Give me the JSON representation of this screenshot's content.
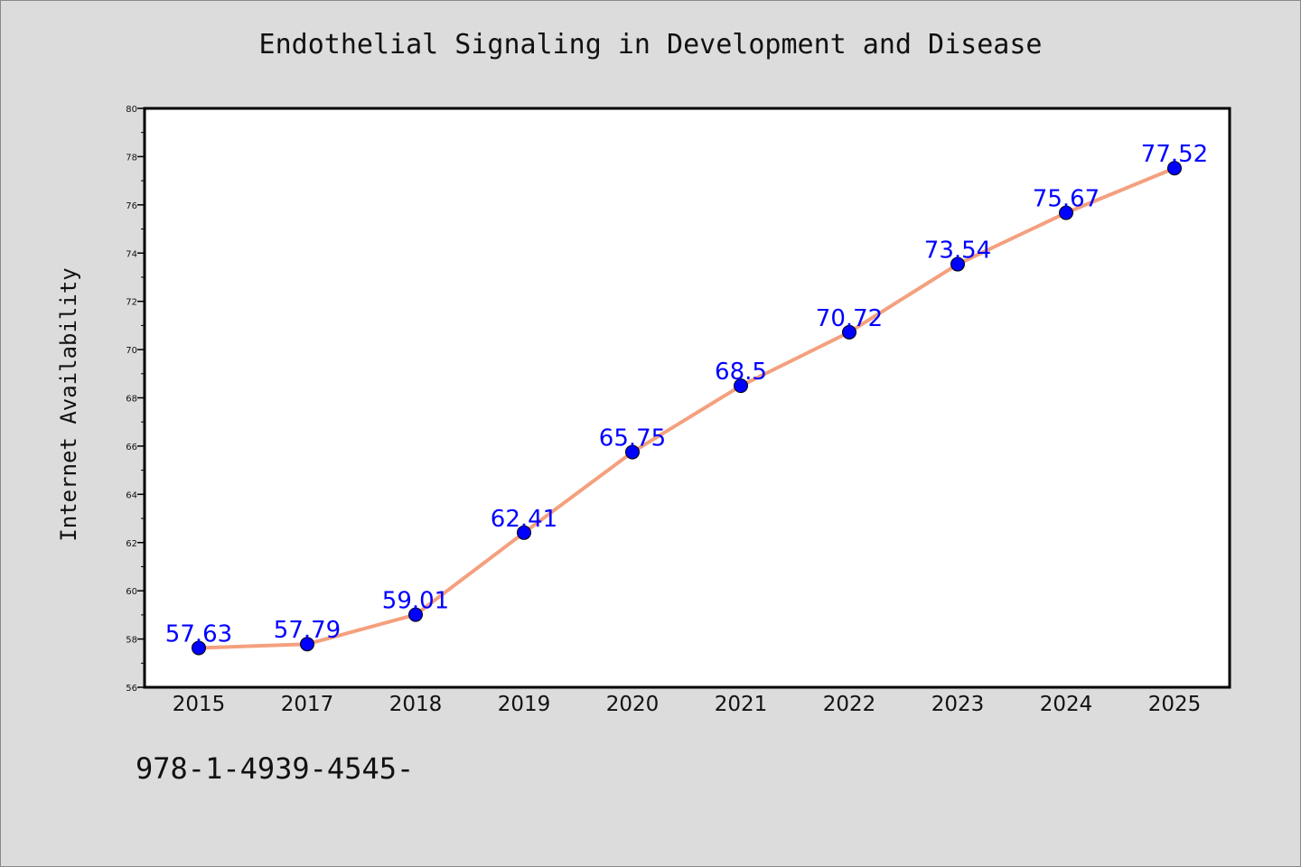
{
  "chart_data": {
    "type": "line",
    "title": "Endothelial Signaling in Development and Disease",
    "xlabel": "",
    "ylabel": "Internet Availability",
    "categories": [
      "2015",
      "2017",
      "2018",
      "2019",
      "2020",
      "2021",
      "2022",
      "2023",
      "2024",
      "2025"
    ],
    "series": [
      {
        "values": [
          57.63,
          57.79,
          59.01,
          62.41,
          65.75,
          68.5,
          70.72,
          73.54,
          75.67,
          77.52
        ],
        "data_labels": [
          "57.63",
          "57.79",
          "59.01",
          "62.41",
          "65.75",
          "68.5",
          "70.72",
          "73.54",
          "75.67",
          "77.52"
        ],
        "line_color": "#f4a07e",
        "marker_color": "#0000ff",
        "label_color": "#0000ff"
      }
    ],
    "ylim": [
      56,
      80
    ],
    "y_ticks": [
      "56",
      "58",
      "60",
      "62",
      "64",
      "66",
      "68",
      "70",
      "72",
      "74",
      "76",
      "78",
      "80"
    ],
    "grid": false,
    "legend": "none"
  },
  "footer": {
    "isbn_text": "978-1-4939-4545-"
  }
}
